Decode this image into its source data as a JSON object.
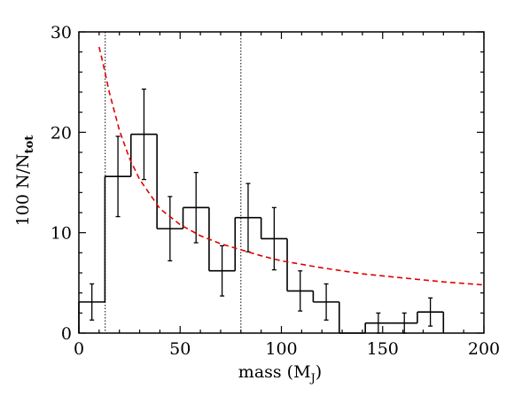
{
  "chart_data": {
    "type": "histogram",
    "xlabel": "mass (M",
    "xlabel_sub": "J",
    "xlabel_close": ")",
    "ylabel": "100 N/N",
    "ylabel_sub": "tot",
    "xlim": [
      0,
      200
    ],
    "ylim": [
      0,
      30
    ],
    "x_ticks": [
      0,
      50,
      100,
      150,
      200
    ],
    "x_tick_labels": [
      "0",
      "50",
      "100",
      "150",
      "200"
    ],
    "y_ticks": [
      0,
      10,
      20,
      30
    ],
    "y_tick_labels": [
      "0",
      "10",
      "20",
      "30"
    ],
    "x_minor_step": 10,
    "y_minor_step": 2,
    "bin_width": 12.86,
    "bins": [
      {
        "x0": 0.0,
        "x1": 12.86,
        "value": 3.1,
        "err": 1.8
      },
      {
        "x0": 12.86,
        "x1": 25.71,
        "value": 15.6,
        "err": 4.0
      },
      {
        "x0": 25.71,
        "x1": 38.57,
        "value": 19.8,
        "err": 4.5
      },
      {
        "x0": 38.57,
        "x1": 51.43,
        "value": 10.4,
        "err": 3.2
      },
      {
        "x0": 51.43,
        "x1": 64.29,
        "value": 12.5,
        "err": 3.5
      },
      {
        "x0": 64.29,
        "x1": 77.14,
        "value": 6.2,
        "err": 2.5
      },
      {
        "x0": 77.14,
        "x1": 90.0,
        "value": 11.5,
        "err": 3.4
      },
      {
        "x0": 90.0,
        "x1": 102.86,
        "value": 9.4,
        "err": 3.1
      },
      {
        "x0": 102.86,
        "x1": 115.71,
        "value": 4.2,
        "err": 2.0
      },
      {
        "x0": 115.71,
        "x1": 128.57,
        "value": 3.1,
        "err": 1.8
      },
      {
        "x0": 128.57,
        "x1": 141.43,
        "value": 0.0,
        "err": 0
      },
      {
        "x0": 141.43,
        "x1": 154.29,
        "value": 1.0,
        "err": 1.0
      },
      {
        "x0": 154.29,
        "x1": 167.14,
        "value": 1.0,
        "err": 1.0
      },
      {
        "x0": 167.14,
        "x1": 180.0,
        "value": 2.1,
        "err": 1.4
      }
    ],
    "vertical_lines": [
      13,
      80
    ],
    "fit_curve": {
      "style": "dashed",
      "color": "#e00000",
      "points": [
        [
          10,
          28.5
        ],
        [
          12,
          26.8
        ],
        [
          15,
          24.0
        ],
        [
          20,
          20.2
        ],
        [
          25,
          17.4
        ],
        [
          30,
          15.3
        ],
        [
          40,
          12.4
        ],
        [
          50,
          10.8
        ],
        [
          60,
          9.7
        ],
        [
          70,
          8.9
        ],
        [
          80,
          8.3
        ],
        [
          90,
          7.7
        ],
        [
          100,
          7.2
        ],
        [
          120,
          6.5
        ],
        [
          140,
          5.9
        ],
        [
          160,
          5.5
        ],
        [
          180,
          5.1
        ],
        [
          200,
          4.8
        ]
      ]
    },
    "colors": {
      "histogram": "#000000",
      "fit": "#e00000",
      "axes": "#000000"
    },
    "grid": false
  }
}
